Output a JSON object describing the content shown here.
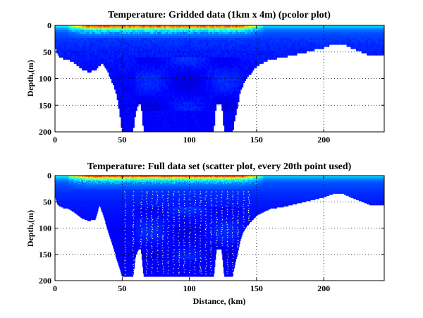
{
  "chart_data": [
    {
      "type": "heatmap",
      "subtype": "pcolor",
      "title": "Temperature: Gridded data (1km x 4m) (pcolor plot)",
      "xlabel": "",
      "ylabel": "Depth,(m)",
      "xlim": [
        0,
        245
      ],
      "ylim": [
        200,
        0
      ],
      "xticks": [
        0,
        50,
        100,
        150,
        200
      ],
      "yticks": [
        0,
        50,
        100,
        150,
        200
      ],
      "grid": "dotted",
      "colormap": "jet",
      "colormap_colors": [
        "#00008f",
        "#0000ff",
        "#0080ff",
        "#00ffff",
        "#80ff80",
        "#ffff00",
        "#ff8000",
        "#ff0000",
        "#800000"
      ],
      "profile": {
        "description": "maximum sampled depth (m) along distance (km)",
        "x": [
          0,
          2,
          6,
          10,
          15,
          20,
          25,
          30,
          35,
          40,
          45,
          48,
          50,
          52,
          54,
          56,
          58,
          60,
          62,
          64,
          66,
          68,
          70,
          75,
          80,
          90,
          100,
          110,
          118,
          120,
          122,
          124,
          126,
          128,
          130,
          132,
          134,
          136,
          138,
          140,
          145,
          150,
          155,
          160,
          170,
          180,
          190,
          200,
          205,
          210,
          215,
          220,
          225,
          230,
          235,
          240,
          244
        ],
        "bottom_depth": [
          40,
          55,
          60,
          62,
          70,
          80,
          85,
          82,
          70,
          90,
          120,
          160,
          200,
          200,
          200,
          200,
          200,
          160,
          145,
          145,
          200,
          200,
          200,
          200,
          200,
          200,
          200,
          200,
          200,
          145,
          145,
          145,
          200,
          200,
          200,
          200,
          170,
          150,
          120,
          110,
          90,
          75,
          68,
          62,
          58,
          52,
          46,
          40,
          35,
          32,
          34,
          40,
          45,
          50,
          55,
          55,
          55
        ]
      },
      "surface_warm_layer": {
        "x_range_km": [
          10,
          155
        ],
        "max_temperature_depth_m": [
          0,
          12
        ]
      }
    },
    {
      "type": "scatter",
      "title": "Temperature: Full data set (scatter plot, every 20th point used)",
      "xlabel": "Distance, (km)",
      "ylabel": "Depth,(m)",
      "xlim": [
        0,
        245
      ],
      "ylim": [
        200,
        0
      ],
      "xticks": [
        0,
        50,
        100,
        150,
        200
      ],
      "yticks": [
        0,
        50,
        100,
        150,
        200
      ],
      "grid": "dotted",
      "colormap": "jet",
      "profile": {
        "description": "maximum sampled depth (m) along distance (km)",
        "x": [
          0,
          2,
          6,
          10,
          15,
          20,
          25,
          30,
          33,
          36,
          40,
          45,
          50,
          52,
          54,
          56,
          58,
          60,
          62,
          64,
          66,
          68,
          70,
          75,
          80,
          90,
          100,
          110,
          118,
          120,
          122,
          124,
          126,
          128,
          130,
          132,
          134,
          136,
          138,
          140,
          145,
          150,
          155,
          160,
          170,
          180,
          190,
          200,
          205,
          210,
          215,
          220,
          225,
          230,
          235,
          240,
          244
        ],
        "bottom_depth": [
          40,
          55,
          60,
          62,
          70,
          80,
          85,
          82,
          55,
          75,
          110,
          150,
          192,
          192,
          192,
          192,
          192,
          150,
          140,
          140,
          192,
          192,
          192,
          192,
          192,
          192,
          192,
          192,
          192,
          140,
          140,
          140,
          192,
          192,
          192,
          192,
          165,
          145,
          120,
          105,
          88,
          75,
          68,
          62,
          58,
          52,
          46,
          40,
          35,
          32,
          34,
          40,
          45,
          50,
          55,
          55,
          55
        ]
      },
      "sampling_stations_km": [
        52,
        58,
        64,
        68,
        72,
        76,
        80,
        84,
        88,
        92,
        96,
        100,
        104,
        108,
        112,
        116,
        120,
        124,
        128,
        132,
        136,
        140,
        144
      ]
    }
  ]
}
